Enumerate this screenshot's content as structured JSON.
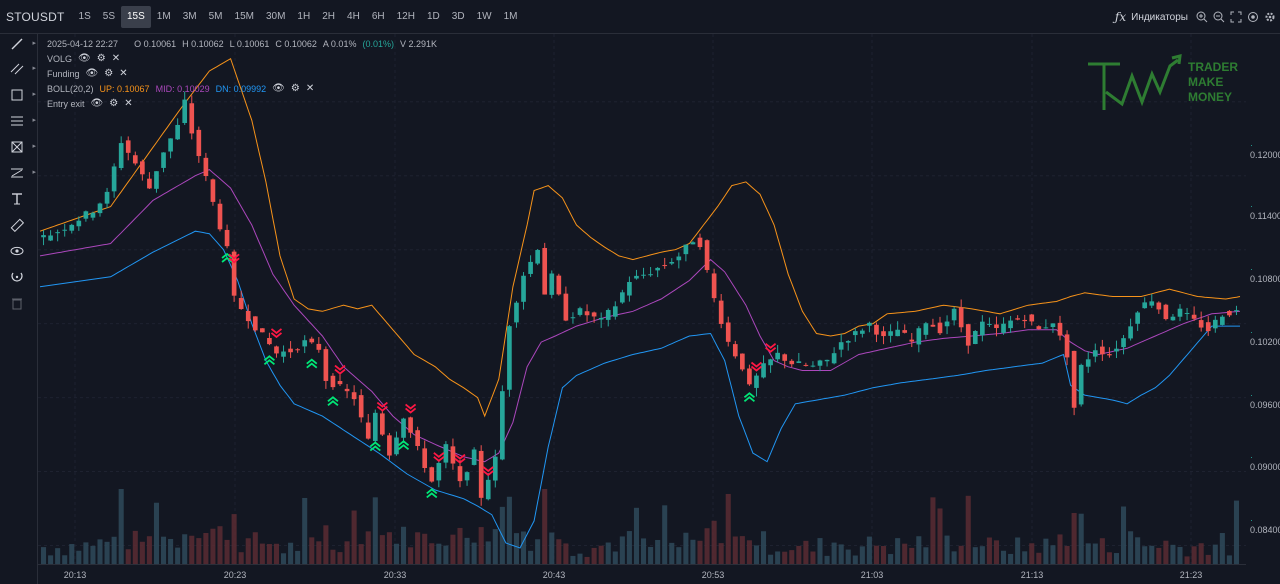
{
  "toolbar": {
    "symbol": "STOUSDT",
    "timeframes": [
      "1S",
      "5S",
      "15S",
      "1M",
      "3M",
      "5M",
      "15M",
      "30M",
      "1H",
      "2H",
      "4H",
      "6H",
      "12H",
      "1D",
      "3D",
      "1W",
      "1M"
    ],
    "active_timeframe": "15S",
    "fx_label": "ƒx",
    "indicators_label": "Индикаторы"
  },
  "legend": {
    "date": "2025-04-12 22:27",
    "open": "O 0.10061",
    "high": "H 0.10062",
    "low": "L 0.10061",
    "close": "C 0.10062",
    "amplitude": "A 0.01%",
    "change": "(0.01%)",
    "volume": "V 2.291K",
    "indicators": [
      {
        "name": "VOLG"
      },
      {
        "name": "Funding"
      },
      {
        "name": "BOLL(20,2)",
        "up": "UP: 0.10067",
        "mid": "MID: 0.10029",
        "dn": "DN: 0.09992"
      },
      {
        "name": "Entry exit"
      }
    ]
  },
  "logo": {
    "line1": "TRADER",
    "line2": "MAKE",
    "line3": "MONEY"
  },
  "colors": {
    "background": "#131722",
    "up": "#26a69a",
    "down": "#ef5350",
    "boll_up": "#f7931a",
    "boll_mid": "#ab47bc",
    "boll_dn": "#2196f3",
    "logo": "#2e7d32"
  },
  "chart_data": {
    "type": "candlestick",
    "price_ticks": [
      "0.12000",
      "0.11400",
      "0.10800",
      "0.10200",
      "0.09600",
      "0.09000",
      "0.08400"
    ],
    "time_ticks": [
      "20:13",
      "20:23",
      "20:33",
      "20:43",
      "20:53",
      "21:03",
      "21:13",
      "21:23"
    ],
    "ylim": [
      0.0825,
      0.1255
    ],
    "grid": true,
    "price_path": [
      [
        0,
        0.1088
      ],
      [
        3,
        0.1095
      ],
      [
        6,
        0.1105
      ],
      [
        8,
        0.1112
      ],
      [
        10,
        0.1125
      ],
      [
        12,
        0.1168
      ],
      [
        14,
        0.115
      ],
      [
        16,
        0.113
      ],
      [
        18,
        0.116
      ],
      [
        20,
        0.118
      ],
      [
        21,
        0.12
      ],
      [
        22,
        0.1175
      ],
      [
        24,
        0.1138
      ],
      [
        25,
        0.1118
      ],
      [
        27,
        0.108
      ],
      [
        28,
        0.104
      ],
      [
        30,
        0.1025
      ],
      [
        32,
        0.101
      ],
      [
        34,
        0.0996
      ],
      [
        36,
        0.0998
      ],
      [
        38,
        0.1005
      ],
      [
        40,
        0.1
      ],
      [
        41,
        0.0975
      ],
      [
        43,
        0.0968
      ],
      [
        45,
        0.096
      ],
      [
        47,
        0.0925
      ],
      [
        48,
        0.0948
      ],
      [
        50,
        0.0915
      ],
      [
        52,
        0.0945
      ],
      [
        54,
        0.0918
      ],
      [
        56,
        0.0892
      ],
      [
        58,
        0.092
      ],
      [
        60,
        0.089
      ],
      [
        62,
        0.0915
      ],
      [
        63,
        0.088
      ],
      [
        65,
        0.091
      ],
      [
        67,
        0.102
      ],
      [
        69,
        0.106
      ],
      [
        70,
        0.107
      ],
      [
        71,
        0.1082
      ],
      [
        72,
        0.1045
      ],
      [
        73,
        0.1058
      ],
      [
        75,
        0.1025
      ],
      [
        77,
        0.103
      ],
      [
        80,
        0.1022
      ],
      [
        82,
        0.1035
      ],
      [
        84,
        0.1055
      ],
      [
        87,
        0.1062
      ],
      [
        89,
        0.1068
      ],
      [
        91,
        0.1075
      ],
      [
        93,
        0.1088
      ],
      [
        94,
        0.1085
      ],
      [
        95,
        0.1062
      ],
      [
        96,
        0.104
      ],
      [
        98,
        0.1005
      ],
      [
        100,
        0.0985
      ],
      [
        101,
        0.0968
      ],
      [
        103,
        0.0985
      ],
      [
        105,
        0.0995
      ],
      [
        107,
        0.0988
      ],
      [
        110,
        0.0985
      ],
      [
        112,
        0.099
      ],
      [
        114,
        0.1005
      ],
      [
        116,
        0.1012
      ],
      [
        118,
        0.102
      ],
      [
        120,
        0.1008
      ],
      [
        122,
        0.1015
      ],
      [
        124,
        0.1005
      ],
      [
        126,
        0.1022
      ],
      [
        128,
        0.1015
      ],
      [
        130,
        0.103
      ],
      [
        132,
        0.1005
      ],
      [
        134,
        0.102
      ],
      [
        136,
        0.1015
      ],
      [
        138,
        0.1022
      ],
      [
        140,
        0.1025
      ],
      [
        142,
        0.1015
      ],
      [
        144,
        0.1022
      ],
      [
        146,
        0.0995
      ],
      [
        147,
        0.0952
      ],
      [
        148,
        0.0985
      ],
      [
        150,
        0.1
      ],
      [
        152,
        0.0995
      ],
      [
        154,
        0.1008
      ],
      [
        156,
        0.1032
      ],
      [
        158,
        0.104
      ],
      [
        160,
        0.1025
      ],
      [
        162,
        0.103
      ],
      [
        164,
        0.1022
      ],
      [
        166,
        0.1015
      ],
      [
        168,
        0.1028
      ],
      [
        170,
        0.103
      ]
    ],
    "boll_upper": [
      [
        0,
        0.1095
      ],
      [
        10,
        0.1115
      ],
      [
        20,
        0.1195
      ],
      [
        24,
        0.1225
      ],
      [
        27,
        0.1235
      ],
      [
        30,
        0.1185
      ],
      [
        32,
        0.1135
      ],
      [
        34,
        0.1075
      ],
      [
        36,
        0.104
      ],
      [
        38,
        0.1032
      ],
      [
        40,
        0.103
      ],
      [
        43,
        0.1035
      ],
      [
        45,
        0.1032
      ],
      [
        47,
        0.1035
      ],
      [
        50,
        0.1015
      ],
      [
        53,
        0.0995
      ],
      [
        56,
        0.0985
      ],
      [
        58,
        0.0975
      ],
      [
        60,
        0.0968
      ],
      [
        62,
        0.096
      ],
      [
        63,
        0.0945
      ],
      [
        65,
        0.0975
      ],
      [
        67,
        0.105
      ],
      [
        69,
        0.11
      ],
      [
        70,
        0.1128
      ],
      [
        72,
        0.1132
      ],
      [
        74,
        0.1122
      ],
      [
        76,
        0.11
      ],
      [
        78,
        0.109
      ],
      [
        80,
        0.1082
      ],
      [
        82,
        0.1075
      ],
      [
        84,
        0.1072
      ],
      [
        86,
        0.1075
      ],
      [
        88,
        0.1078
      ],
      [
        90,
        0.108
      ],
      [
        92,
        0.1085
      ],
      [
        94,
        0.11
      ],
      [
        96,
        0.1115
      ],
      [
        98,
        0.1132
      ],
      [
        100,
        0.1135
      ],
      [
        102,
        0.1125
      ],
      [
        104,
        0.11
      ],
      [
        106,
        0.106
      ],
      [
        108,
        0.103
      ],
      [
        110,
        0.1012
      ],
      [
        112,
        0.101
      ],
      [
        114,
        0.1012
      ],
      [
        116,
        0.1018
      ],
      [
        118,
        0.102
      ],
      [
        120,
        0.1028
      ],
      [
        124,
        0.103
      ],
      [
        128,
        0.1035
      ],
      [
        132,
        0.1032
      ],
      [
        136,
        0.1028
      ],
      [
        140,
        0.1035
      ],
      [
        144,
        0.1038
      ],
      [
        146,
        0.1042
      ],
      [
        148,
        0.1045
      ],
      [
        152,
        0.1042
      ],
      [
        156,
        0.1042
      ],
      [
        160,
        0.1048
      ],
      [
        164,
        0.1042
      ],
      [
        168,
        0.104
      ],
      [
        170,
        0.1042
      ]
    ],
    "boll_mid": [
      [
        0,
        0.1075
      ],
      [
        10,
        0.1085
      ],
      [
        16,
        0.112
      ],
      [
        22,
        0.114
      ],
      [
        24,
        0.1145
      ],
      [
        27,
        0.113
      ],
      [
        30,
        0.11
      ],
      [
        33,
        0.106
      ],
      [
        36,
        0.1035
      ],
      [
        40,
        0.101
      ],
      [
        43,
        0.0985
      ],
      [
        47,
        0.0965
      ],
      [
        50,
        0.0945
      ],
      [
        53,
        0.093
      ],
      [
        56,
        0.0922
      ],
      [
        60,
        0.0912
      ],
      [
        63,
        0.0908
      ],
      [
        65,
        0.0915
      ],
      [
        67,
        0.094
      ],
      [
        69,
        0.0985
      ],
      [
        71,
        0.1005
      ],
      [
        73,
        0.101
      ],
      [
        76,
        0.1018
      ],
      [
        80,
        0.1025
      ],
      [
        84,
        0.103
      ],
      [
        88,
        0.104
      ],
      [
        92,
        0.1055
      ],
      [
        95,
        0.1072
      ],
      [
        97,
        0.1062
      ],
      [
        100,
        0.1035
      ],
      [
        102,
        0.101
      ],
      [
        104,
        0.099
      ],
      [
        106,
        0.0985
      ],
      [
        108,
        0.0982
      ],
      [
        112,
        0.0982
      ],
      [
        116,
        0.0995
      ],
      [
        120,
        0.1
      ],
      [
        124,
        0.1005
      ],
      [
        128,
        0.1008
      ],
      [
        132,
        0.101
      ],
      [
        136,
        0.1012
      ],
      [
        140,
        0.1015
      ],
      [
        144,
        0.1015
      ],
      [
        146,
        0.1005
      ],
      [
        148,
        0.0998
      ],
      [
        150,
        0.0995
      ],
      [
        154,
        0.1
      ],
      [
        158,
        0.101
      ],
      [
        162,
        0.102
      ],
      [
        166,
        0.1028
      ],
      [
        170,
        0.103
      ]
    ],
    "boll_lower": [
      [
        0,
        0.105
      ],
      [
        10,
        0.1058
      ],
      [
        16,
        0.1078
      ],
      [
        22,
        0.1095
      ],
      [
        24,
        0.1093
      ],
      [
        26,
        0.108
      ],
      [
        28,
        0.1055
      ],
      [
        30,
        0.102
      ],
      [
        32,
        0.099
      ],
      [
        34,
        0.097
      ],
      [
        36,
        0.0955
      ],
      [
        40,
        0.0945
      ],
      [
        44,
        0.093
      ],
      [
        48,
        0.0915
      ],
      [
        52,
        0.0898
      ],
      [
        56,
        0.0885
      ],
      [
        60,
        0.0878
      ],
      [
        62,
        0.0872
      ],
      [
        64,
        0.0865
      ],
      [
        66,
        0.0842
      ],
      [
        68,
        0.0838
      ],
      [
        70,
        0.086
      ],
      [
        72,
        0.092
      ],
      [
        74,
        0.0968
      ],
      [
        76,
        0.0978
      ],
      [
        80,
        0.0988
      ],
      [
        84,
        0.0995
      ],
      [
        88,
        0.1
      ],
      [
        92,
        0.101
      ],
      [
        95,
        0.1012
      ],
      [
        97,
        0.099
      ],
      [
        99,
        0.0945
      ],
      [
        101,
        0.0915
      ],
      [
        103,
        0.0908
      ],
      [
        105,
        0.0935
      ],
      [
        107,
        0.0955
      ],
      [
        110,
        0.0958
      ],
      [
        114,
        0.0962
      ],
      [
        118,
        0.0968
      ],
      [
        122,
        0.0972
      ],
      [
        126,
        0.0975
      ],
      [
        130,
        0.0978
      ],
      [
        134,
        0.0982
      ],
      [
        138,
        0.0985
      ],
      [
        142,
        0.0988
      ],
      [
        145,
        0.0995
      ],
      [
        146,
        0.097
      ],
      [
        148,
        0.0962
      ],
      [
        150,
        0.096
      ],
      [
        152,
        0.0958
      ],
      [
        154,
        0.0955
      ],
      [
        156,
        0.0962
      ],
      [
        158,
        0.0968
      ],
      [
        160,
        0.0978
      ],
      [
        163,
        0.0998
      ],
      [
        166,
        0.1018
      ],
      [
        170,
        0.1018
      ]
    ],
    "signals": [
      {
        "i": 26,
        "type": "buy"
      },
      {
        "i": 27,
        "type": "sell"
      },
      {
        "i": 32,
        "type": "buy"
      },
      {
        "i": 33,
        "type": "sell"
      },
      {
        "i": 38,
        "type": "buy"
      },
      {
        "i": 41,
        "type": "buy"
      },
      {
        "i": 42,
        "type": "sell"
      },
      {
        "i": 47,
        "type": "buy"
      },
      {
        "i": 48,
        "type": "sell"
      },
      {
        "i": 51,
        "type": "buy"
      },
      {
        "i": 52,
        "type": "sell"
      },
      {
        "i": 55,
        "type": "buy"
      },
      {
        "i": 56,
        "type": "sell"
      },
      {
        "i": 59,
        "type": "sell"
      },
      {
        "i": 63,
        "type": "sell"
      },
      {
        "i": 100,
        "type": "buy"
      },
      {
        "i": 101,
        "type": "sell"
      },
      {
        "i": 103,
        "type": "sell"
      }
    ]
  }
}
